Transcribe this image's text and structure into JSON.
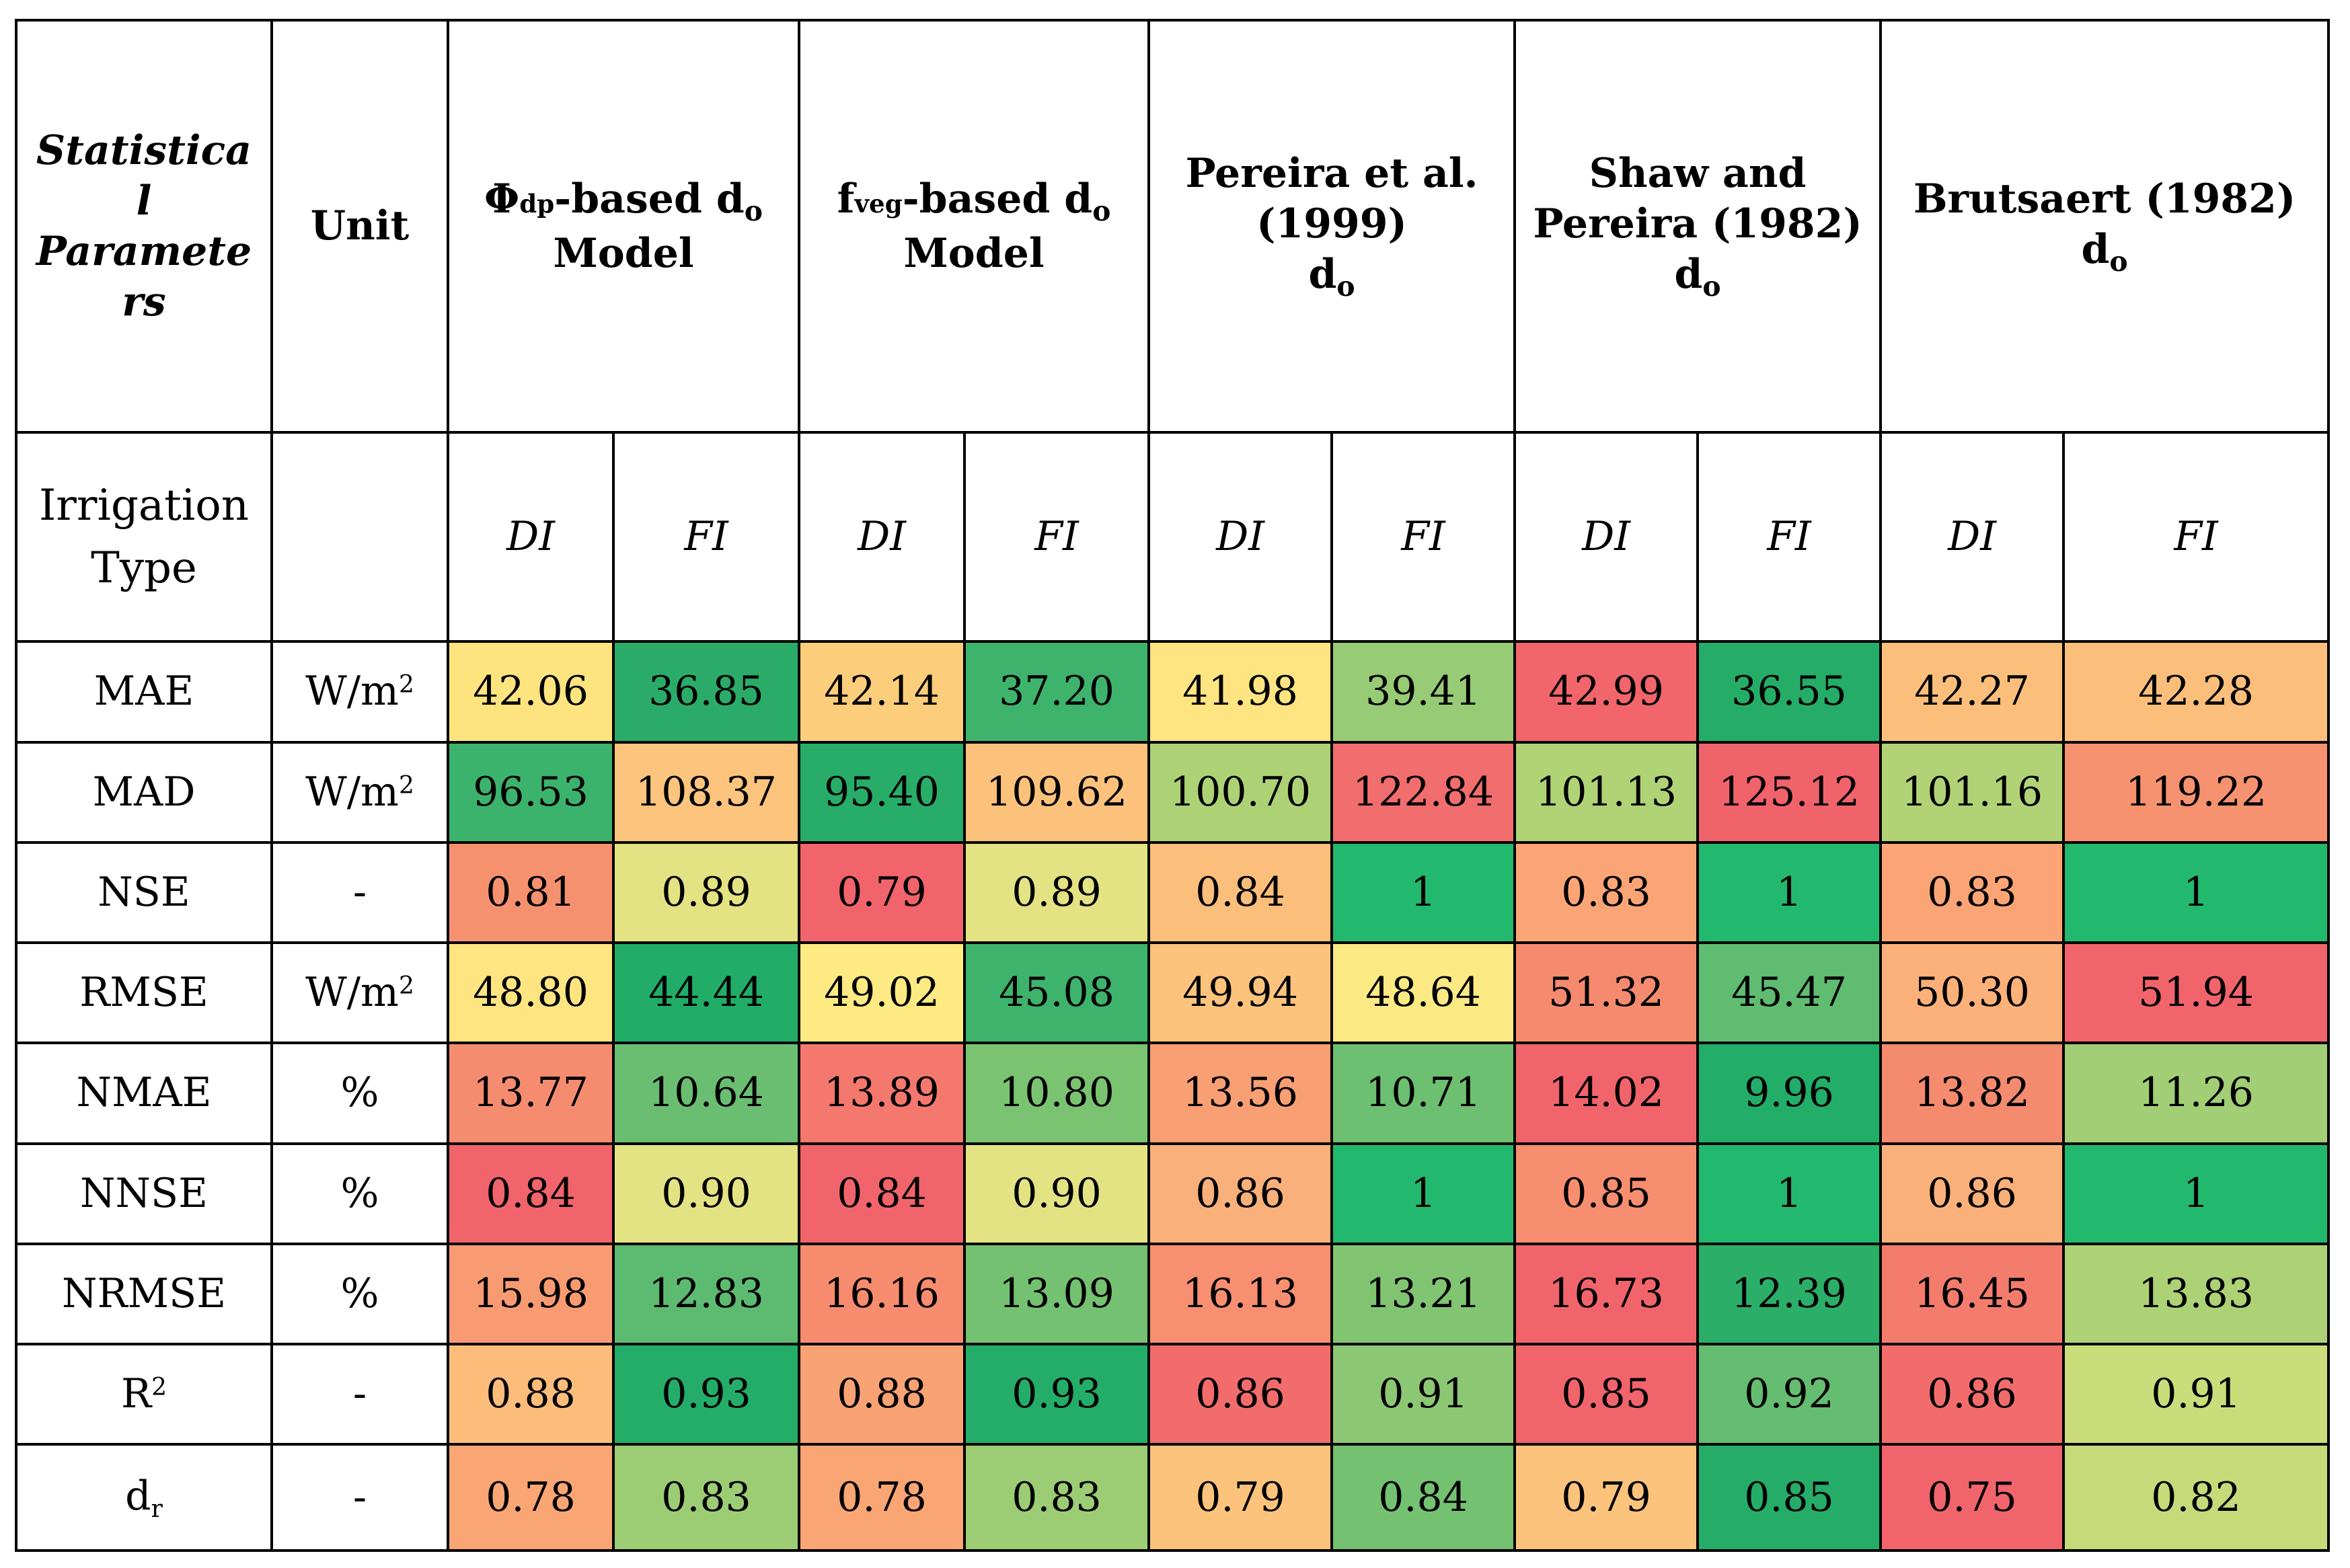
{
  "headers": {
    "param": [
      "Statistica",
      "l",
      "Paramete",
      "rs"
    ],
    "unit": "Unit",
    "models": [
      {
        "lines": [
          {
            "pre": "Φ",
            "sub": "dp",
            "post": "-based  d",
            "sub2": "o"
          },
          {
            "text": "Model"
          }
        ]
      },
      {
        "lines": [
          {
            "pre": "f",
            "sub": "veg",
            "post": "-based  d",
            "sub2": "o"
          },
          {
            "text": "Model"
          }
        ]
      },
      {
        "lines": [
          {
            "text": "Pereira et al."
          },
          {
            "text": "(1999)"
          },
          {
            "pre": "d",
            "sub2": "o"
          }
        ]
      },
      {
        "lines": [
          {
            "text": "Shaw and"
          },
          {
            "text": "Pereira (1982)"
          },
          {
            "pre": "d",
            "sub2": "o"
          }
        ]
      },
      {
        "lines": [
          {
            "text": "Brutsaert (1982)"
          },
          {
            "pre": "d",
            "sub2": "o"
          }
        ]
      }
    ]
  },
  "irrigation": {
    "label_lines": [
      "Irrigation",
      "Type"
    ],
    "types": [
      "DI",
      "FI",
      "DI",
      "FI",
      "DI",
      "FI",
      "DI",
      "FI",
      "DI",
      "FI"
    ]
  },
  "rows": [
    {
      "param": "MAE",
      "unit": "W/m",
      "unit_sup": "2",
      "values": [
        "42.06",
        "36.85",
        "42.14",
        "37.20",
        "41.98",
        "39.41",
        "42.99",
        "36.55",
        "42.27",
        "42.28"
      ],
      "colors": [
        "#fde47f",
        "#2aac68",
        "#fccd7b",
        "#3eb36c",
        "#fee582",
        "#98cb75",
        "#f1656b",
        "#25ad68",
        "#fcbf7b",
        "#fcbf7b"
      ]
    },
    {
      "param": "MAD",
      "unit": "W/m",
      "unit_sup": "2",
      "values": [
        "96.53",
        "108.37",
        "95.40",
        "109.62",
        "100.70",
        "122.84",
        "101.13",
        "125.12",
        "101.16",
        "119.22"
      ],
      "colors": [
        "#3cb36c",
        "#fcc47c",
        "#27ad68",
        "#fcc27c",
        "#add276",
        "#f26d6d",
        "#b0d376",
        "#f0636b",
        "#b1d376",
        "#f6926f"
      ]
    },
    {
      "param": "NSE",
      "unit": "-",
      "values": [
        "0.81",
        "0.89",
        "0.79",
        "0.89",
        "0.84",
        "1",
        "0.83",
        "1",
        "0.83",
        "1"
      ],
      "colors": [
        "#f6916f",
        "#e3e383",
        "#f1646b",
        "#e3e383",
        "#fcbe7b",
        "#22b86e",
        "#fba576",
        "#22b86e",
        "#fba576",
        "#22b86e"
      ]
    },
    {
      "param": "RMSE",
      "unit": "W/m",
      "unit_sup": "2",
      "values": [
        "48.80",
        "44.44",
        "49.02",
        "45.08",
        "49.94",
        "48.64",
        "51.32",
        "45.47",
        "50.30",
        "51.94"
      ],
      "colors": [
        "#fee582",
        "#21ad68",
        "#feea83",
        "#3db36c",
        "#fcc37c",
        "#fbea84",
        "#f58a6f",
        "#5fbc70",
        "#fbb179",
        "#f1646b"
      ]
    },
    {
      "param": "NMAE",
      "unit": "%",
      "values": [
        "13.77",
        "10.64",
        "13.89",
        "10.80",
        "13.56",
        "10.71",
        "14.02",
        "9.96",
        "13.82",
        "11.26"
      ],
      "colors": [
        "#f68c6f",
        "#6abe71",
        "#f4786d",
        "#7ac371",
        "#f89f73",
        "#6dbf71",
        "#f1646b",
        "#22ad68",
        "#f48a6e",
        "#a2cf75"
      ]
    },
    {
      "param": "NNSE",
      "unit": "%",
      "values": [
        "0.84",
        "0.90",
        "0.84",
        "0.90",
        "0.86",
        "1",
        "0.85",
        "1",
        "0.86",
        "1"
      ],
      "colors": [
        "#f1646b",
        "#e4e383",
        "#f1646b",
        "#e4e383",
        "#fab07a",
        "#22b86e",
        "#f68e6f",
        "#22b86e",
        "#fab07a",
        "#22b86e"
      ]
    },
    {
      "param": "NRMSE",
      "unit": "%",
      "values": [
        "15.98",
        "12.83",
        "16.16",
        "13.09",
        "16.13",
        "13.21",
        "16.73",
        "12.39",
        "16.45",
        "13.83"
      ],
      "colors": [
        "#f99b72",
        "#5cbb70",
        "#f78c6f",
        "#74c171",
        "#f78f70",
        "#81c472",
        "#f1646b",
        "#2bae68",
        "#f47c6d",
        "#add276"
      ]
    },
    {
      "param": "R",
      "param_sup": "2",
      "unit": "-",
      "values": [
        "0.88",
        "0.93",
        "0.88",
        "0.93",
        "0.86",
        "0.91",
        "0.85",
        "0.92",
        "0.86",
        "0.91"
      ],
      "colors": [
        "#fcbd7b",
        "#24ad68",
        "#f9a274",
        "#24ad68",
        "#f26c6c",
        "#8cc773",
        "#f1646b",
        "#64bd70",
        "#f26c6c",
        "#cbdc7b"
      ]
    },
    {
      "param": "d",
      "param_sub": "r",
      "unit": "-",
      "values": [
        "0.78",
        "0.83",
        "0.78",
        "0.83",
        "0.79",
        "0.84",
        "0.79",
        "0.85",
        "0.75",
        "0.82"
      ],
      "colors": [
        "#f9a574",
        "#9ccd75",
        "#f9a574",
        "#9ccd75",
        "#fcc37c",
        "#74c171",
        "#fcc37c",
        "#25ad68",
        "#f1646b",
        "#c6da7a"
      ]
    }
  ]
}
